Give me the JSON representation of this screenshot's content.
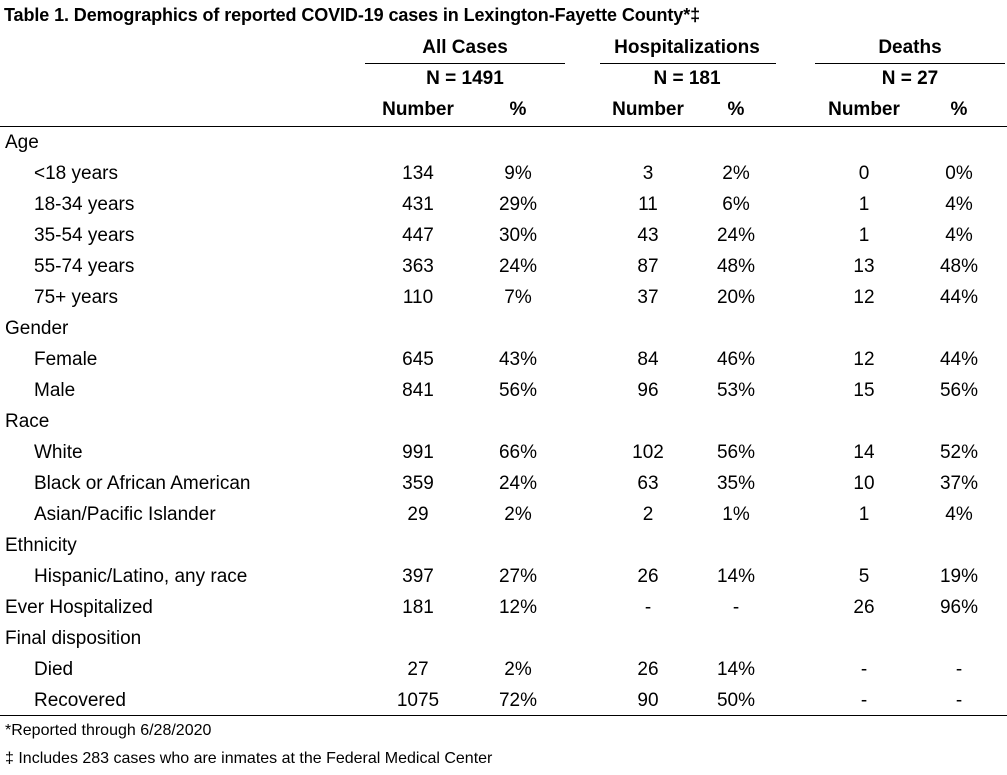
{
  "title": "Table 1. Demographics of reported COVID-19 cases in Lexington-Fayette County*‡",
  "groups": [
    {
      "name": "All Cases",
      "n": "N = 1491"
    },
    {
      "name": "Hospitalizations",
      "n": "N = 181"
    },
    {
      "name": "Deaths",
      "n": "N = 27"
    }
  ],
  "column_labels": {
    "number": "Number",
    "percent": "%"
  },
  "rows": [
    {
      "label": "Age",
      "type": "category",
      "values": [
        "",
        "",
        "",
        "",
        "",
        ""
      ]
    },
    {
      "label": "<18 years",
      "type": "sub",
      "values": [
        "134",
        "9%",
        "3",
        "2%",
        "0",
        "0%"
      ]
    },
    {
      "label": "18-34 years",
      "type": "sub",
      "values": [
        "431",
        "29%",
        "11",
        "6%",
        "1",
        "4%"
      ]
    },
    {
      "label": "35-54 years",
      "type": "sub",
      "values": [
        "447",
        "30%",
        "43",
        "24%",
        "1",
        "4%"
      ]
    },
    {
      "label": "55-74 years",
      "type": "sub",
      "values": [
        "363",
        "24%",
        "87",
        "48%",
        "13",
        "48%"
      ]
    },
    {
      "label": "75+ years",
      "type": "sub",
      "values": [
        "110",
        "7%",
        "37",
        "20%",
        "12",
        "44%"
      ]
    },
    {
      "label": "Gender",
      "type": "category",
      "values": [
        "",
        "",
        "",
        "",
        "",
        ""
      ]
    },
    {
      "label": "Female",
      "type": "sub",
      "values": [
        "645",
        "43%",
        "84",
        "46%",
        "12",
        "44%"
      ]
    },
    {
      "label": "Male",
      "type": "sub",
      "values": [
        "841",
        "56%",
        "96",
        "53%",
        "15",
        "56%"
      ]
    },
    {
      "label": "Race",
      "type": "category",
      "values": [
        "",
        "",
        "",
        "",
        "",
        ""
      ]
    },
    {
      "label": "White",
      "type": "sub",
      "values": [
        "991",
        "66%",
        "102",
        "56%",
        "14",
        "52%"
      ]
    },
    {
      "label": "Black or African American",
      "type": "sub",
      "values": [
        "359",
        "24%",
        "63",
        "35%",
        "10",
        "37%"
      ]
    },
    {
      "label": "Asian/Pacific Islander",
      "type": "sub",
      "values": [
        "29",
        "2%",
        "2",
        "1%",
        "1",
        "4%"
      ]
    },
    {
      "label": "Ethnicity",
      "type": "category",
      "values": [
        "",
        "",
        "",
        "",
        "",
        ""
      ]
    },
    {
      "label": "Hispanic/Latino, any race",
      "type": "sub",
      "values": [
        "397",
        "27%",
        "26",
        "14%",
        "5",
        "19%"
      ]
    },
    {
      "label": "Ever Hospitalized",
      "type": "category",
      "values": [
        "181",
        "12%",
        "-",
        "-",
        "26",
        "96%"
      ]
    },
    {
      "label": "Final disposition",
      "type": "category",
      "values": [
        "",
        "",
        "",
        "",
        "",
        ""
      ]
    },
    {
      "label": "Died",
      "type": "sub",
      "values": [
        "27",
        "2%",
        "26",
        "14%",
        "-",
        "-"
      ]
    },
    {
      "label": "Recovered",
      "type": "sub",
      "values": [
        "1075",
        "72%",
        "90",
        "50%",
        "-",
        "-"
      ]
    }
  ],
  "footnotes": [
    "*Reported through 6/28/2020",
    "‡ Includes 283 cases who are inmates at the Federal Medical Center"
  ]
}
